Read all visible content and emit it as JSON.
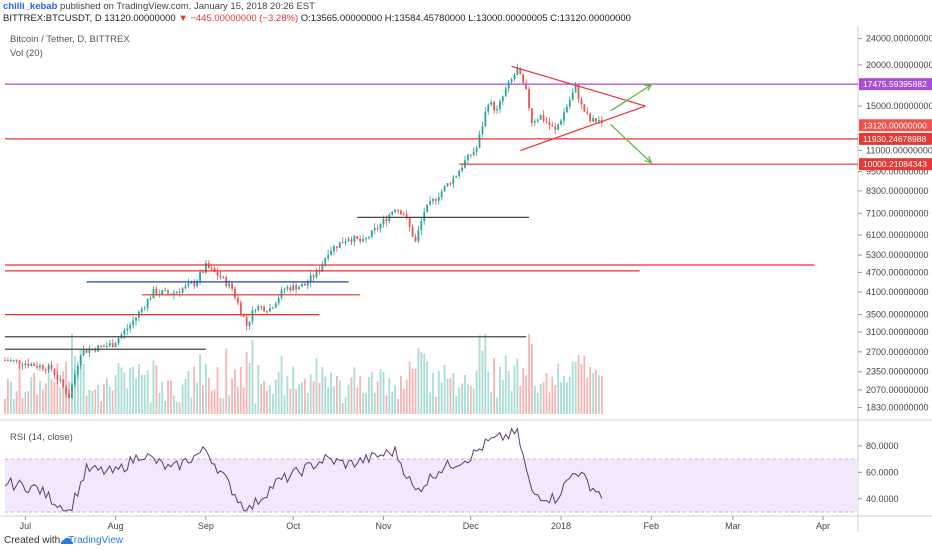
{
  "header": {
    "user": "chilli_kebab",
    "published": "published on TradingView.com, January 15, 2018 20:26 EST",
    "symbol": "BITTREX:BTCUSDT, D",
    "last": "13120.00000000",
    "change": "▼ −445.00000000 (−3.28%)",
    "o": "O:13565.00000000",
    "h": "H:13584.45780000",
    "l": "L:13000.00000005",
    "c": "C:13120.00000000"
  },
  "footer": {
    "created_with": "Created with",
    "brand": "TradingView"
  },
  "colors": {
    "up": "#26a69a",
    "down": "#ef5350",
    "hline": "#ef2f2f",
    "purple": "#a64fd6",
    "green_arrow": "#69b34c",
    "rsi_band": "#f3e8fb",
    "rsi_line": "#5d3a7a"
  },
  "chart_data": {
    "type": "candlestick",
    "title": "Bitcoin / Tether, D, BITTREX",
    "indicator_volume": "Vol (20)",
    "indicator_rsi": "RSI (14, close)",
    "x_tick_labels": [
      "Jul",
      "Aug",
      "Sep",
      "Oct",
      "Nov",
      "Dec",
      "2018",
      "Feb",
      "Mar",
      "Apr"
    ],
    "x_tick_dates": [
      "2017-07-01",
      "2017-08-01",
      "2017-09-01",
      "2017-10-01",
      "2017-11-01",
      "2017-12-01",
      "2018-01-01",
      "2018-02-01",
      "2018-03-01",
      "2018-04-01"
    ],
    "y_scale": "log",
    "y_tick_labels": [
      "24000.00000000",
      "20000.00000000",
      "15000.00000000",
      "11000.00000000",
      "9500.00000000",
      "8300.00000000",
      "7100.00000000",
      "6100.00000000",
      "5300.00000000",
      "4700.00000000",
      "4100.00000000",
      "3500.00000000",
      "3100.00000000",
      "2700.00000000",
      "2350.00000000",
      "2070.00000000",
      "1830.00000000"
    ],
    "y_ticks": [
      24000,
      20000,
      15000,
      11000,
      9500,
      8300,
      7100,
      6100,
      5300,
      4700,
      4100,
      3500,
      3100,
      2700,
      2350,
      2070,
      1830
    ],
    "price_tags": [
      {
        "label": "17475.59395882",
        "value": 17475.59,
        "color": "#a64fd6"
      },
      {
        "label": "13120.00000000",
        "value": 13120,
        "color": "#ef5350"
      },
      {
        "label": "11930.24678988",
        "value": 11930.25,
        "color": "#e53935"
      },
      {
        "label": "10000.21084343",
        "value": 10000.21,
        "color": "#e53935"
      }
    ],
    "rsi_tick_labels": [
      "80.0000",
      "60.0000",
      "40.0000"
    ],
    "rsi_ticks": [
      80,
      60,
      40
    ],
    "rsi_band": [
      30,
      70
    ],
    "close_path": [
      [
        "2017-06-24",
        2550
      ],
      [
        "2017-07-01",
        2500
      ],
      [
        "2017-07-10",
        2400
      ],
      [
        "2017-07-16",
        1980
      ],
      [
        "2017-07-20",
        2700
      ],
      [
        "2017-07-31",
        2850
      ],
      [
        "2017-08-06",
        3250
      ],
      [
        "2017-08-14",
        4100
      ],
      [
        "2017-08-20",
        4050
      ],
      [
        "2017-08-28",
        4350
      ],
      [
        "2017-09-01",
        4900
      ],
      [
        "2017-09-06",
        4550
      ],
      [
        "2017-09-10",
        4200
      ],
      [
        "2017-09-15",
        3250
      ],
      [
        "2017-09-18",
        3700
      ],
      [
        "2017-09-23",
        3650
      ],
      [
        "2017-09-28",
        4200
      ],
      [
        "2017-10-05",
        4300
      ],
      [
        "2017-10-10",
        4800
      ],
      [
        "2017-10-13",
        5450
      ],
      [
        "2017-10-20",
        6000
      ],
      [
        "2017-10-25",
        5800
      ],
      [
        "2017-11-01",
        6700
      ],
      [
        "2017-11-05",
        7400
      ],
      [
        "2017-11-08",
        7100
      ],
      [
        "2017-11-12",
        5800
      ],
      [
        "2017-11-15",
        7200
      ],
      [
        "2017-11-20",
        8100
      ],
      [
        "2017-11-26",
        9300
      ],
      [
        "2017-11-29",
        10200
      ],
      [
        "2017-12-03",
        11200
      ],
      [
        "2017-12-07",
        15500
      ],
      [
        "2017-12-10",
        14500
      ],
      [
        "2017-12-13",
        16800
      ],
      [
        "2017-12-17",
        19300
      ],
      [
        "2017-12-20",
        16500
      ],
      [
        "2017-12-22",
        13500
      ],
      [
        "2017-12-25",
        14000
      ],
      [
        "2017-12-30",
        12600
      ],
      [
        "2018-01-03",
        15000
      ],
      [
        "2018-01-06",
        17100
      ],
      [
        "2018-01-08",
        15000
      ],
      [
        "2018-01-11",
        13500
      ],
      [
        "2018-01-14",
        13600
      ],
      [
        "2018-01-15",
        13120
      ]
    ],
    "rsi_path": [
      [
        "2017-06-24",
        52
      ],
      [
        "2017-07-05",
        48
      ],
      [
        "2017-07-16",
        30
      ],
      [
        "2017-07-22",
        62
      ],
      [
        "2017-08-01",
        60
      ],
      [
        "2017-08-10",
        74
      ],
      [
        "2017-08-20",
        62
      ],
      [
        "2017-09-01",
        77
      ],
      [
        "2017-09-15",
        30
      ],
      [
        "2017-09-25",
        52
      ],
      [
        "2017-10-12",
        70
      ],
      [
        "2017-10-20",
        66
      ],
      [
        "2017-11-05",
        76
      ],
      [
        "2017-11-12",
        45
      ],
      [
        "2017-11-20",
        62
      ],
      [
        "2017-12-01",
        72
      ],
      [
        "2017-12-07",
        83
      ],
      [
        "2017-12-17",
        90
      ],
      [
        "2017-12-22",
        44
      ],
      [
        "2017-12-30",
        40
      ],
      [
        "2018-01-06",
        62
      ],
      [
        "2018-01-12",
        48
      ],
      [
        "2018-01-15",
        43
      ]
    ],
    "drawings": {
      "horizontal_levels": [
        {
          "value": 17475.59,
          "from": "2017-06-24",
          "to": "2018-04-15",
          "color": "#a64fd6"
        },
        {
          "value": 11930.25,
          "from": "2017-06-24",
          "to": "2018-04-15",
          "color": "#ef2f2f"
        },
        {
          "value": 10000.21,
          "from": "2017-11-27",
          "to": "2018-04-15",
          "color": "#ef2f2f"
        },
        {
          "value": 4950,
          "from": "2017-06-24",
          "to": "2018-03-29",
          "color": "#ef2f2f"
        },
        {
          "value": 4750,
          "from": "2017-06-24",
          "to": "2018-01-28",
          "color": "#ef2f2f"
        },
        {
          "value": 4400,
          "from": "2017-07-22",
          "to": "2017-10-20",
          "color": "#1f3fb0"
        },
        {
          "value": 4020,
          "from": "2017-08-10",
          "to": "2017-10-24",
          "color": "#ef2f2f"
        },
        {
          "value": 3500,
          "from": "2017-06-24",
          "to": "2017-10-10",
          "color": "#ef2f2f"
        },
        {
          "value": 3000,
          "from": "2017-06-24",
          "to": "2017-12-20",
          "color": "#444444"
        },
        {
          "value": 2750,
          "from": "2017-06-24",
          "to": "2017-09-01",
          "color": "#444444"
        },
        {
          "value": 6900,
          "from": "2017-10-23",
          "to": "2017-12-21",
          "color": "#444444"
        }
      ],
      "triangle_top": [
        [
          "2017-12-15",
          19800
        ],
        [
          "2018-01-30",
          15000
        ]
      ],
      "triangle_bottom": [
        [
          "2017-12-18",
          11000
        ],
        [
          "2018-01-30",
          15000
        ]
      ],
      "arrow_up": [
        [
          "2018-01-18",
          14500
        ],
        [
          "2018-02-01",
          17400
        ]
      ],
      "arrow_down": [
        [
          "2018-01-18",
          13200
        ],
        [
          "2018-02-01",
          10100
        ]
      ]
    }
  }
}
